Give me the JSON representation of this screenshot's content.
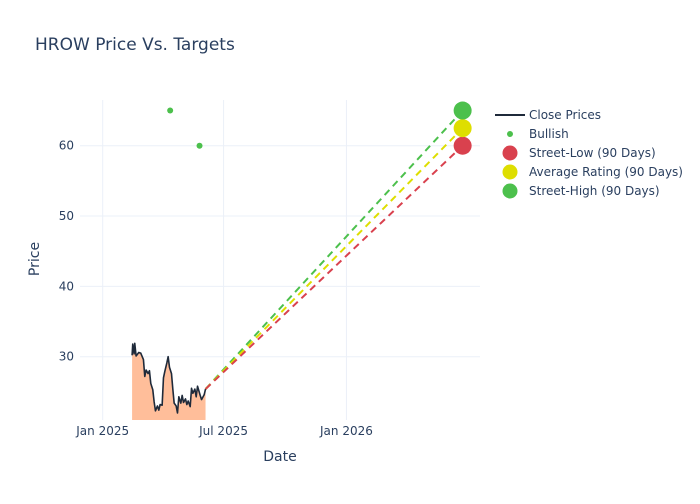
{
  "chart_data": {
    "type": "line",
    "title": "HROW Price Vs. Targets",
    "xlabel": "Date",
    "ylabel": "Price",
    "x_ticks": [
      {
        "date": "2025-01-01",
        "label": "Jan 2025"
      },
      {
        "date": "2025-07-01",
        "label": "Jul 2025"
      },
      {
        "date": "2026-01-01",
        "label": "Jan 2026"
      }
    ],
    "y_ticks": [
      30,
      40,
      50,
      60
    ],
    "xlim": [
      "2024-11-28",
      "2026-07-20"
    ],
    "ylim": [
      21,
      66.5
    ],
    "grid": true,
    "legend_position": "right",
    "series": [
      {
        "name": "Close Prices",
        "kind": "line-with-area-fill",
        "color": "#1f2a3a",
        "fill_color": "#ffbe9a",
        "points": [
          [
            "2025-02-14",
            30.2
          ],
          [
            "2025-02-15",
            31.8
          ],
          [
            "2025-02-17",
            30.4
          ],
          [
            "2025-02-18",
            31.9
          ],
          [
            "2025-02-20",
            30.1
          ],
          [
            "2025-02-24",
            30.6
          ],
          [
            "2025-02-27",
            30.5
          ],
          [
            "2025-03-03",
            29.6
          ],
          [
            "2025-03-05",
            27.2
          ],
          [
            "2025-03-07",
            28.1
          ],
          [
            "2025-03-10",
            27.6
          ],
          [
            "2025-03-12",
            28.0
          ],
          [
            "2025-03-14",
            26.2
          ],
          [
            "2025-03-17",
            25.3
          ],
          [
            "2025-03-19",
            23.6
          ],
          [
            "2025-03-21",
            22.3
          ],
          [
            "2025-03-24",
            23.0
          ],
          [
            "2025-03-26",
            22.4
          ],
          [
            "2025-03-28",
            23.2
          ],
          [
            "2025-03-31",
            23.1
          ],
          [
            "2025-04-02",
            27.0
          ],
          [
            "2025-04-04",
            27.9
          ],
          [
            "2025-04-07",
            29.1
          ],
          [
            "2025-04-09",
            30.0
          ],
          [
            "2025-04-11",
            28.5
          ],
          [
            "2025-04-14",
            27.6
          ],
          [
            "2025-04-16",
            25.4
          ],
          [
            "2025-04-18",
            23.4
          ],
          [
            "2025-04-21",
            23.0
          ],
          [
            "2025-04-23",
            22.0
          ],
          [
            "2025-04-25",
            24.3
          ],
          [
            "2025-04-28",
            23.4
          ],
          [
            "2025-04-30",
            24.5
          ],
          [
            "2025-05-02",
            23.5
          ],
          [
            "2025-05-05",
            24.0
          ],
          [
            "2025-05-07",
            23.2
          ],
          [
            "2025-05-09",
            23.7
          ],
          [
            "2025-05-12",
            22.9
          ],
          [
            "2025-05-14",
            25.5
          ],
          [
            "2025-05-16",
            24.8
          ],
          [
            "2025-05-19",
            25.4
          ],
          [
            "2025-05-21",
            24.3
          ],
          [
            "2025-05-23",
            25.8
          ],
          [
            "2025-05-27",
            24.5
          ],
          [
            "2025-05-29",
            23.9
          ],
          [
            "2025-06-02",
            24.6
          ],
          [
            "2025-06-04",
            25.4
          ]
        ]
      },
      {
        "name": "Bullish",
        "kind": "markers",
        "color": "#4cc04c",
        "points": [
          [
            "2025-04-12",
            65.0
          ],
          [
            "2025-05-26",
            60.0
          ]
        ]
      },
      {
        "name": "Street-Low (90 Days)",
        "kind": "target",
        "color": "#d9414e",
        "start": [
          "2025-06-04",
          25.4
        ],
        "end": [
          "2026-06-24",
          60.0
        ]
      },
      {
        "name": "Average Rating (90 Days)",
        "kind": "target",
        "color": "#dede00",
        "start": [
          "2025-06-04",
          25.4
        ],
        "end": [
          "2026-06-24",
          62.5
        ]
      },
      {
        "name": "Street-High (90 Days)",
        "kind": "target",
        "color": "#4cc04c",
        "start": [
          "2025-06-04",
          25.4
        ],
        "end": [
          "2026-06-24",
          65.0
        ]
      }
    ]
  }
}
